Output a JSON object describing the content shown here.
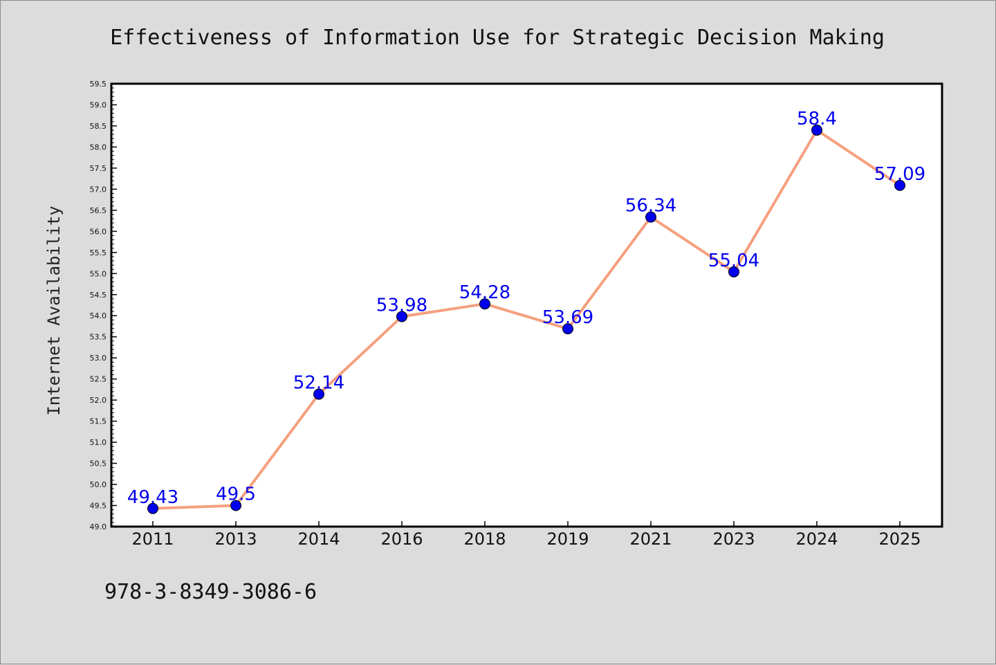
{
  "footer_text": "978-3-8349-3086-6",
  "chart_data": {
    "type": "line",
    "title": "Effectiveness of Information Use for Strategic Decision Making",
    "xlabel": "",
    "ylabel": "Internet Availability",
    "categories": [
      "2011",
      "2013",
      "2014",
      "2016",
      "2018",
      "2019",
      "2021",
      "2023",
      "2024",
      "2025"
    ],
    "series": [
      {
        "values": [
          49.43,
          49.5,
          52.14,
          53.98,
          54.28,
          53.69,
          56.34,
          55.04,
          58.4,
          57.09
        ],
        "labels": [
          "49.43",
          "49.5",
          "52.14",
          "53.98",
          "54.28",
          "53.69",
          "56.34",
          "55.04",
          "58.4",
          "57.09"
        ],
        "line_color": "#f5a07f",
        "marker_color": "#0000ee",
        "label_color": "#0000ee"
      }
    ],
    "ylim": [
      49.0,
      59.5
    ],
    "yticks": [
      "49.0",
      "49.5",
      "50.0",
      "50.5",
      "51.0",
      "51.5",
      "52.0",
      "52.5",
      "53.0",
      "53.5",
      "54.0",
      "54.5",
      "55.0",
      "55.5",
      "56.0",
      "56.5",
      "57.0",
      "57.5",
      "58.0",
      "58.5",
      "59.0",
      "59.5"
    ],
    "grid": false,
    "legend": "none"
  }
}
